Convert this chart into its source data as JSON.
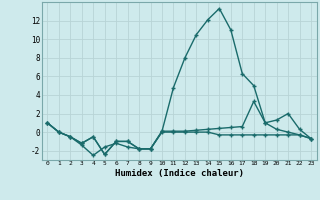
{
  "xlabel": "Humidex (Indice chaleur)",
  "background_color": "#ceeaec",
  "line_color": "#1a6b6b",
  "grid_color": "#b8d4d6",
  "x_values": [
    0,
    1,
    2,
    3,
    4,
    5,
    6,
    7,
    8,
    9,
    10,
    11,
    12,
    13,
    14,
    15,
    16,
    17,
    18,
    19,
    20,
    21,
    22,
    23
  ],
  "line1": [
    1,
    0,
    -0.5,
    -1.2,
    -0.5,
    -2.4,
    -1.0,
    -1.0,
    -1.8,
    -1.8,
    0.1,
    0.1,
    0.1,
    0.2,
    0.3,
    0.4,
    0.5,
    0.6,
    3.3,
    1.0,
    1.3,
    2.0,
    0.3,
    -0.7
  ],
  "line2": [
    1,
    0,
    -0.5,
    -1.2,
    -0.5,
    -2.4,
    -1.0,
    -1.0,
    -1.8,
    -1.8,
    0.1,
    4.8,
    8.0,
    10.5,
    12.1,
    13.3,
    11.0,
    6.3,
    5.0,
    1.0,
    0.3,
    0.0,
    -0.3,
    -0.7
  ],
  "line3": [
    1,
    0,
    -0.5,
    -1.4,
    -2.5,
    -1.6,
    -1.2,
    -1.6,
    -1.8,
    -1.8,
    0.0,
    0.0,
    0.0,
    0.0,
    0.0,
    -0.3,
    -0.3,
    -0.3,
    -0.3,
    -0.3,
    -0.3,
    -0.3,
    -0.3,
    -0.7
  ],
  "ylim": [
    -3,
    14
  ],
  "yticks": [
    -2,
    0,
    2,
    4,
    6,
    8,
    10,
    12
  ],
  "xticks": [
    0,
    1,
    2,
    3,
    4,
    5,
    6,
    7,
    8,
    9,
    10,
    11,
    12,
    13,
    14,
    15,
    16,
    17,
    18,
    19,
    20,
    21,
    22,
    23
  ],
  "marker": "+",
  "markersize": 3,
  "linewidth": 1.0
}
